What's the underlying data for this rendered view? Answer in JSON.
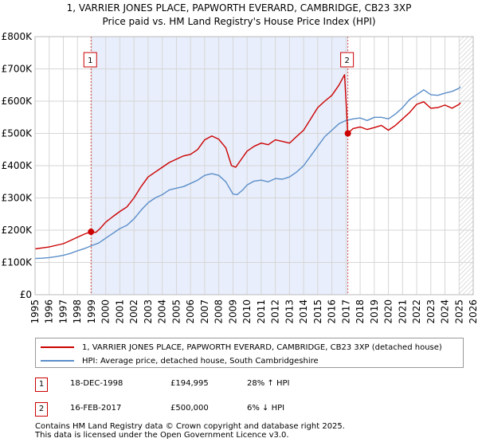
{
  "title": {
    "line1": "1, VARRIER JONES PLACE, PAPWORTH EVERARD, CAMBRIDGE, CB23 3XP",
    "line2": "Price paid vs. HM Land Registry's House Price Index (HPI)"
  },
  "colors": {
    "property": "#cc0000",
    "hpi": "#5b8ec9",
    "shade": "#e8eefb",
    "grid": "#d6d6d6",
    "marker_border": "#cc0000"
  },
  "chart_data": {
    "type": "line",
    "title": "1, VARRIER JONES PLACE, PAPWORTH EVERARD, CAMBRIDGE, CB23 3XP — Price paid vs. HM Land Registry's House Price Index (HPI)",
    "xlabel": "",
    "ylabel": "",
    "xlim": [
      1995,
      2026
    ],
    "ylim": [
      0,
      800000
    ],
    "yticks": [
      0,
      100000,
      200000,
      300000,
      400000,
      500000,
      600000,
      700000,
      800000
    ],
    "ytick_labels": [
      "£0",
      "£100K",
      "£200K",
      "£300K",
      "£400K",
      "£500K",
      "£600K",
      "£700K",
      "£800K"
    ],
    "xticks": [
      1995,
      1996,
      1997,
      1998,
      1999,
      2000,
      2001,
      2002,
      2003,
      2004,
      2005,
      2006,
      2007,
      2008,
      2009,
      2010,
      2011,
      2012,
      2013,
      2014,
      2015,
      2016,
      2017,
      2018,
      2019,
      2020,
      2021,
      2022,
      2023,
      2024,
      2025,
      2026
    ],
    "grid": true,
    "shaded_period": [
      1998.96,
      2017.13
    ],
    "data_end_hatch": 2025.0,
    "series": [
      {
        "name": "1, VARRIER JONES PLACE, PAPWORTH EVERARD, CAMBRIDGE, CB23 3XP (detached house)",
        "color": "#cc0000",
        "x": [
          1995.0,
          1995.5,
          1996.0,
          1996.5,
          1997.0,
          1997.5,
          1998.0,
          1998.5,
          1998.96,
          1999.3,
          1999.6,
          2000.0,
          2000.5,
          2001.0,
          2001.5,
          2002.0,
          2002.5,
          2003.0,
          2003.5,
          2004.0,
          2004.5,
          2005.0,
          2005.5,
          2006.0,
          2006.5,
          2007.0,
          2007.5,
          2008.0,
          2008.5,
          2008.9,
          2009.2,
          2009.6,
          2010.0,
          2010.5,
          2011.0,
          2011.5,
          2012.0,
          2012.5,
          2013.0,
          2013.5,
          2014.0,
          2014.5,
          2015.0,
          2015.5,
          2016.0,
          2016.5,
          2016.9,
          2017.13,
          2017.5,
          2018.0,
          2018.5,
          2019.0,
          2019.5,
          2020.0,
          2020.5,
          2021.0,
          2021.5,
          2022.0,
          2022.5,
          2023.0,
          2023.5,
          2024.0,
          2024.5,
          2025.0,
          2025.1
        ],
        "y": [
          142000,
          145000,
          148000,
          153000,
          158000,
          168000,
          178000,
          188000,
          194995,
          193000,
          205000,
          225000,
          242000,
          258000,
          272000,
          300000,
          335000,
          365000,
          380000,
          395000,
          410000,
          420000,
          430000,
          435000,
          450000,
          480000,
          492000,
          482000,
          455000,
          400000,
          395000,
          420000,
          445000,
          460000,
          470000,
          465000,
          480000,
          475000,
          470000,
          490000,
          510000,
          545000,
          580000,
          600000,
          618000,
          650000,
          682000,
          500000,
          515000,
          520000,
          512000,
          518000,
          525000,
          510000,
          525000,
          545000,
          565000,
          590000,
          598000,
          578000,
          580000,
          588000,
          578000,
          590000,
          595000
        ]
      },
      {
        "name": "HPI: Average price, detached house, South Cambridgeshire",
        "color": "#5b8ec9",
        "x": [
          1995.0,
          1995.5,
          1996.0,
          1996.5,
          1997.0,
          1997.5,
          1998.0,
          1998.5,
          1999.0,
          1999.5,
          2000.0,
          2000.5,
          2001.0,
          2001.5,
          2002.0,
          2002.5,
          2003.0,
          2003.5,
          2004.0,
          2004.5,
          2005.0,
          2005.5,
          2006.0,
          2006.5,
          2007.0,
          2007.5,
          2008.0,
          2008.5,
          2009.0,
          2009.3,
          2009.7,
          2010.0,
          2010.5,
          2011.0,
          2011.5,
          2012.0,
          2012.5,
          2013.0,
          2013.5,
          2014.0,
          2014.5,
          2015.0,
          2015.5,
          2016.0,
          2016.5,
          2017.0,
          2017.5,
          2018.0,
          2018.5,
          2019.0,
          2019.5,
          2020.0,
          2020.5,
          2021.0,
          2021.5,
          2022.0,
          2022.5,
          2023.0,
          2023.5,
          2024.0,
          2024.5,
          2025.0,
          2025.1
        ],
        "y": [
          112000,
          113000,
          115000,
          118000,
          122000,
          128000,
          136000,
          143000,
          152000,
          160000,
          175000,
          190000,
          205000,
          215000,
          235000,
          262000,
          285000,
          300000,
          310000,
          325000,
          330000,
          335000,
          345000,
          355000,
          370000,
          375000,
          370000,
          350000,
          312000,
          310000,
          325000,
          340000,
          352000,
          355000,
          350000,
          360000,
          358000,
          365000,
          380000,
          400000,
          430000,
          460000,
          490000,
          510000,
          530000,
          540000,
          545000,
          548000,
          540000,
          550000,
          550000,
          545000,
          560000,
          580000,
          605000,
          620000,
          635000,
          620000,
          618000,
          625000,
          630000,
          640000,
          645000
        ]
      }
    ],
    "sale_markers": [
      {
        "label": "1",
        "x": 1998.96,
        "y": 194995
      },
      {
        "label": "2",
        "x": 2017.13,
        "y": 500000
      }
    ]
  },
  "legend": {
    "property_label": "1, VARRIER JONES PLACE, PAPWORTH EVERARD, CAMBRIDGE, CB23 3XP (detached house)",
    "hpi_label": "HPI: Average price, detached house, South Cambridgeshire"
  },
  "sales": [
    {
      "num": "1",
      "date": "18-DEC-1998",
      "price": "£194,995",
      "hpi": "28% ↑ HPI"
    },
    {
      "num": "2",
      "date": "16-FEB-2017",
      "price": "£500,000",
      "hpi": "6% ↓ HPI"
    }
  ],
  "footer": {
    "line1": "Contains HM Land Registry data © Crown copyright and database right 2025.",
    "line2": "This data is licensed under the Open Government Licence v3.0."
  }
}
